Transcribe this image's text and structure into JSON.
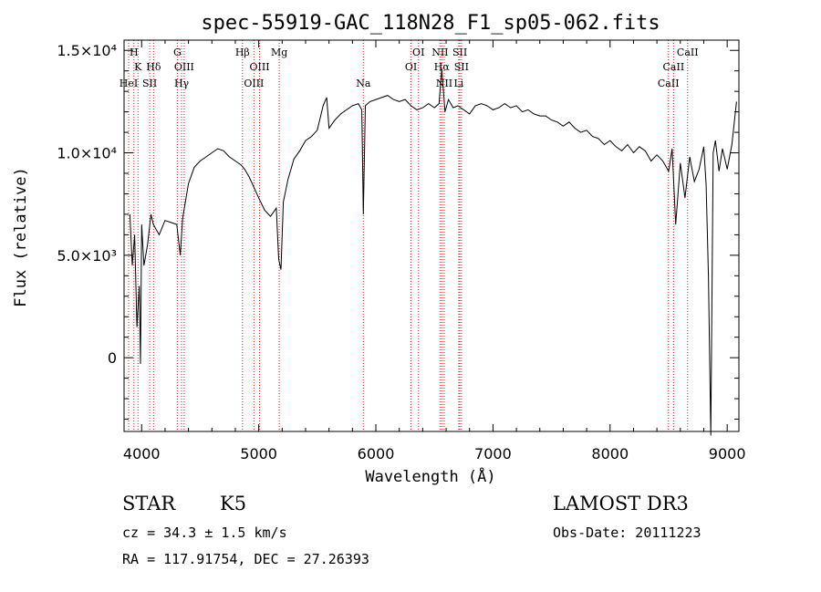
{
  "chart_data": {
    "type": "line",
    "title": "spec-55919-GAC_118N28_F1_sp05-062.fits",
    "xlabel": "Wavelength (Å)",
    "ylabel": "Flux (relative)",
    "xlim": [
      3850,
      9100
    ],
    "ylim": [
      -3600,
      15500
    ],
    "x_ticks": [
      4000,
      5000,
      6000,
      7000,
      8000,
      9000
    ],
    "x_tick_labels": [
      "4000",
      "5000",
      "6000",
      "7000",
      "8000",
      "9000"
    ],
    "y_ticks": [
      0,
      5000,
      10000,
      15000
    ],
    "y_tick_labels": [
      "0",
      "5.0×10³",
      "1.0×10⁴",
      "1.5×10⁴"
    ],
    "grid": false,
    "line_color": "#000000",
    "marker_line_color": "#cc2222",
    "series": [
      {
        "x": [
          3900,
          3920,
          3940,
          3960,
          3980,
          3990,
          4000,
          4020,
          4050,
          4080,
          4100,
          4150,
          4200,
          4250,
          4300,
          4330,
          4350,
          4400,
          4450,
          4500,
          4550,
          4600,
          4650,
          4700,
          4750,
          4800,
          4850,
          4880,
          4920,
          4960,
          5000,
          5050,
          5100,
          5150,
          5170,
          5190,
          5210,
          5250,
          5300,
          5350,
          5400,
          5450,
          5500,
          5550,
          5580,
          5600,
          5650,
          5700,
          5750,
          5800,
          5850,
          5880,
          5893,
          5910,
          5950,
          6000,
          6050,
          6100,
          6150,
          6200,
          6250,
          6300,
          6350,
          6400,
          6450,
          6500,
          6540,
          6563,
          6590,
          6620,
          6660,
          6700,
          6750,
          6800,
          6850,
          6900,
          6950,
          7000,
          7050,
          7100,
          7150,
          7200,
          7250,
          7300,
          7350,
          7400,
          7450,
          7500,
          7550,
          7600,
          7650,
          7700,
          7750,
          7800,
          7850,
          7900,
          7950,
          8000,
          8050,
          8100,
          8150,
          8200,
          8250,
          8300,
          8350,
          8400,
          8450,
          8500,
          8530,
          8560,
          8600,
          8640,
          8680,
          8720,
          8760,
          8800,
          8820,
          8840,
          8860,
          8880,
          8900,
          8930,
          8960,
          9000,
          9040,
          9080
        ],
        "y": [
          7000,
          4500,
          6000,
          1500,
          3500,
          -300,
          6500,
          4500,
          5500,
          7000,
          6500,
          6000,
          6700,
          6600,
          6500,
          5000,
          6800,
          8500,
          9300,
          9600,
          9800,
          10000,
          10200,
          10100,
          9800,
          9600,
          9400,
          9200,
          8800,
          8300,
          7800,
          7200,
          6900,
          7300,
          4800,
          4300,
          7600,
          8700,
          9700,
          10100,
          10600,
          10800,
          11100,
          12300,
          12700,
          11200,
          11600,
          11900,
          12100,
          12300,
          12400,
          12100,
          7000,
          12300,
          12500,
          12600,
          12700,
          12800,
          12600,
          12500,
          12600,
          12300,
          12100,
          12200,
          12400,
          12200,
          12400,
          14100,
          12000,
          12600,
          12200,
          12300,
          12100,
          11900,
          12300,
          12400,
          12300,
          12100,
          12200,
          12400,
          12200,
          12300,
          12000,
          12100,
          11900,
          11800,
          11800,
          11600,
          11500,
          11300,
          11500,
          11200,
          11000,
          11100,
          10800,
          10700,
          10400,
          10600,
          10300,
          10100,
          10400,
          10000,
          10300,
          10100,
          9600,
          9900,
          9600,
          9100,
          10200,
          6500,
          9500,
          7800,
          9800,
          8600,
          9200,
          10300,
          8400,
          4000,
          -3800,
          10000,
          10600,
          9100,
          10200,
          9200,
          10400,
          12500
        ]
      }
    ],
    "lines": [
      {
        "label": "H",
        "x": 3934,
        "row": 1
      },
      {
        "label": "K",
        "x": 3969,
        "row": 2
      },
      {
        "label": "HeI",
        "x": 3889,
        "row": 3
      },
      {
        "label": "SII",
        "x": 4069,
        "row": 3
      },
      {
        "label": "Hδ",
        "x": 4102,
        "row": 2
      },
      {
        "label": "G",
        "x": 4305,
        "row": 1
      },
      {
        "label": "OIII",
        "x": 4363,
        "row": 2
      },
      {
        "label": "Hγ",
        "x": 4341,
        "row": 3
      },
      {
        "label": "Hβ",
        "x": 4861,
        "row": 1
      },
      {
        "label": "OIII",
        "x": 5007,
        "row": 2
      },
      {
        "label": "OIII",
        "x": 4959,
        "row": 3
      },
      {
        "label": "Mg",
        "x": 5175,
        "row": 1
      },
      {
        "label": "Na",
        "x": 5893,
        "row": 3
      },
      {
        "label": "OI",
        "x": 6364,
        "row": 1
      },
      {
        "label": "OI",
        "x": 6300,
        "row": 2
      },
      {
        "label": "NII",
        "x": 6548,
        "row": 1
      },
      {
        "label": "SII",
        "x": 6717,
        "row": 1
      },
      {
        "label": "Hα",
        "x": 6563,
        "row": 2
      },
      {
        "label": "SII",
        "x": 6731,
        "row": 2
      },
      {
        "label": "NII",
        "x": 6584,
        "row": 3
      },
      {
        "label": "Li",
        "x": 6708,
        "row": 3
      },
      {
        "label": "CaII",
        "x": 8662,
        "row": 1
      },
      {
        "label": "CaII",
        "x": 8542,
        "row": 2
      },
      {
        "label": "CaII",
        "x": 8498,
        "row": 3
      }
    ]
  },
  "info": {
    "object_class": "STAR",
    "subclass": "K5",
    "survey": "LAMOST DR3",
    "redshift": "cz = 34.3 ± 1.5 km/s",
    "obs_date": "Obs-Date: 20111223",
    "coords": "RA = 117.91754, DEC =  27.26393"
  }
}
